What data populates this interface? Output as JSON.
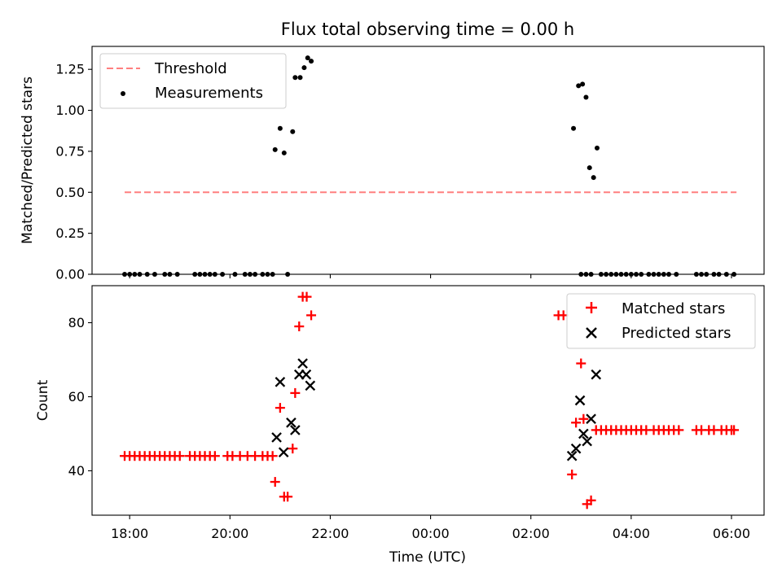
{
  "chart_data": [
    {
      "type": "line+scatter",
      "title": "Flux total observing time = 0.00 h",
      "xlabel": "",
      "ylabel": "Matched/Predicted stars",
      "xlim": [
        -0.75,
        12.65
      ],
      "ylim": [
        0.0,
        1.39
      ],
      "yticks": [
        0.0,
        0.25,
        0.5,
        0.75,
        1.0,
        1.25
      ],
      "ytick_labels": [
        "0.00",
        "0.25",
        "0.50",
        "0.75",
        "1.00",
        "1.25"
      ],
      "xticks": [
        0,
        2,
        4,
        6,
        8,
        10,
        12
      ],
      "legend_position": "upper-left",
      "series": [
        {
          "name": "Threshold",
          "kind": "dashed-line",
          "color": "#ff7f7f",
          "points": [
            [
              -0.1,
              0.5
            ],
            [
              12.1,
              0.5
            ]
          ]
        },
        {
          "name": "Measurements",
          "kind": "scatter-dot",
          "color": "#000000",
          "points": [
            [
              -0.1,
              0
            ],
            [
              0.0,
              0
            ],
            [
              0.1,
              0
            ],
            [
              0.2,
              0
            ],
            [
              0.35,
              0
            ],
            [
              0.5,
              0
            ],
            [
              0.7,
              0
            ],
            [
              0.8,
              0
            ],
            [
              0.95,
              0
            ],
            [
              1.3,
              0
            ],
            [
              1.4,
              0
            ],
            [
              1.5,
              0
            ],
            [
              1.6,
              0
            ],
            [
              1.7,
              0
            ],
            [
              1.85,
              0
            ],
            [
              2.1,
              0
            ],
            [
              2.3,
              0
            ],
            [
              2.4,
              0
            ],
            [
              2.5,
              0
            ],
            [
              2.65,
              0
            ],
            [
              2.75,
              0
            ],
            [
              2.85,
              0
            ],
            [
              3.15,
              0
            ],
            [
              2.9,
              0.76
            ],
            [
              3.0,
              0.89
            ],
            [
              3.08,
              0.74
            ],
            [
              3.25,
              0.87
            ],
            [
              3.3,
              1.2
            ],
            [
              3.4,
              1.2
            ],
            [
              3.48,
              1.26
            ],
            [
              3.55,
              1.32
            ],
            [
              3.62,
              1.3
            ],
            [
              9.0,
              0
            ],
            [
              9.1,
              0
            ],
            [
              9.2,
              0
            ],
            [
              8.85,
              0.89
            ],
            [
              8.95,
              1.15
            ],
            [
              9.03,
              1.16
            ],
            [
              9.1,
              1.08
            ],
            [
              9.17,
              0.65
            ],
            [
              9.25,
              0.59
            ],
            [
              9.32,
              0.77
            ],
            [
              9.4,
              0
            ],
            [
              9.5,
              0
            ],
            [
              9.6,
              0
            ],
            [
              9.7,
              0
            ],
            [
              9.8,
              0
            ],
            [
              9.9,
              0
            ],
            [
              10.0,
              0
            ],
            [
              10.1,
              0
            ],
            [
              10.2,
              0
            ],
            [
              10.35,
              0
            ],
            [
              10.45,
              0
            ],
            [
              10.55,
              0
            ],
            [
              10.65,
              0
            ],
            [
              10.75,
              0
            ],
            [
              10.9,
              0
            ],
            [
              11.3,
              0
            ],
            [
              11.4,
              0
            ],
            [
              11.5,
              0
            ],
            [
              11.65,
              0
            ],
            [
              11.75,
              0
            ],
            [
              11.9,
              0
            ],
            [
              12.05,
              0
            ]
          ]
        }
      ]
    },
    {
      "type": "scatter",
      "title": "",
      "xlabel": "Time (UTC)",
      "ylabel": "Count",
      "xlim": [
        -0.75,
        12.65
      ],
      "ylim": [
        28.0,
        90.0
      ],
      "yticks": [
        40,
        60,
        80
      ],
      "ytick_labels": [
        "40",
        "60",
        "80"
      ],
      "xticks": [
        0,
        2,
        4,
        6,
        8,
        10,
        12
      ],
      "xtick_labels": [
        "18:00",
        "20:00",
        "22:00",
        "00:00",
        "02:00",
        "04:00",
        "06:00"
      ],
      "legend_position": "upper-right",
      "series": [
        {
          "name": "Matched stars",
          "kind": "plus",
          "color": "#ff0000",
          "points": [
            [
              -0.1,
              44
            ],
            [
              0.0,
              44
            ],
            [
              0.1,
              44
            ],
            [
              0.2,
              44
            ],
            [
              0.3,
              44
            ],
            [
              0.4,
              44
            ],
            [
              0.5,
              44
            ],
            [
              0.6,
              44
            ],
            [
              0.7,
              44
            ],
            [
              0.8,
              44
            ],
            [
              0.9,
              44
            ],
            [
              1.0,
              44
            ],
            [
              1.2,
              44
            ],
            [
              1.3,
              44
            ],
            [
              1.4,
              44
            ],
            [
              1.5,
              44
            ],
            [
              1.6,
              44
            ],
            [
              1.7,
              44
            ],
            [
              1.95,
              44
            ],
            [
              2.05,
              44
            ],
            [
              2.2,
              44
            ],
            [
              2.35,
              44
            ],
            [
              2.5,
              44
            ],
            [
              2.65,
              44
            ],
            [
              2.75,
              44
            ],
            [
              2.85,
              44
            ],
            [
              2.9,
              37
            ],
            [
              3.0,
              57
            ],
            [
              3.08,
              33
            ],
            [
              3.15,
              33
            ],
            [
              3.25,
              46
            ],
            [
              3.3,
              61
            ],
            [
              3.38,
              79
            ],
            [
              3.45,
              87
            ],
            [
              3.53,
              87
            ],
            [
              3.62,
              82
            ],
            [
              8.55,
              82
            ],
            [
              8.65,
              82
            ],
            [
              8.82,
              39
            ],
            [
              8.9,
              53
            ],
            [
              9.0,
              69
            ],
            [
              9.05,
              54
            ],
            [
              9.12,
              31
            ],
            [
              9.2,
              32
            ],
            [
              9.3,
              51
            ],
            [
              9.4,
              51
            ],
            [
              9.5,
              51
            ],
            [
              9.6,
              51
            ],
            [
              9.7,
              51
            ],
            [
              9.8,
              51
            ],
            [
              9.9,
              51
            ],
            [
              10.0,
              51
            ],
            [
              10.1,
              51
            ],
            [
              10.2,
              51
            ],
            [
              10.3,
              51
            ],
            [
              10.45,
              51
            ],
            [
              10.55,
              51
            ],
            [
              10.65,
              51
            ],
            [
              10.75,
              51
            ],
            [
              10.85,
              51
            ],
            [
              10.95,
              51
            ],
            [
              11.3,
              51
            ],
            [
              11.4,
              51
            ],
            [
              11.55,
              51
            ],
            [
              11.65,
              51
            ],
            [
              11.8,
              51
            ],
            [
              11.9,
              51
            ],
            [
              12.0,
              51
            ],
            [
              12.05,
              51
            ]
          ]
        },
        {
          "name": "Predicted stars",
          "kind": "x",
          "color": "#000000",
          "points": [
            [
              2.93,
              49
            ],
            [
              3.0,
              64
            ],
            [
              3.07,
              45
            ],
            [
              3.22,
              53
            ],
            [
              3.3,
              51
            ],
            [
              3.38,
              66
            ],
            [
              3.45,
              69
            ],
            [
              3.52,
              66
            ],
            [
              3.6,
              63
            ],
            [
              8.82,
              44
            ],
            [
              8.9,
              46
            ],
            [
              8.98,
              59
            ],
            [
              9.05,
              50
            ],
            [
              9.12,
              48
            ],
            [
              9.2,
              54
            ],
            [
              9.3,
              66
            ]
          ]
        }
      ]
    }
  ]
}
